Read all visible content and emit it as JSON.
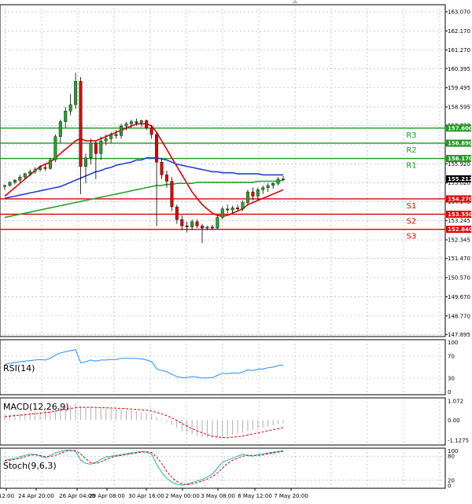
{
  "chart_data": {
    "type": "candlestick",
    "price_axis": {
      "ticks": [
        "163.070",
        "162.170",
        "161.270",
        "160.395",
        "159.495",
        "158.595",
        "157.720",
        "156.820",
        "155.920",
        "155.020",
        "154.145",
        "153.245",
        "152.345",
        "151.470",
        "150.570",
        "149.670",
        "148.770",
        "147.895"
      ],
      "range": [
        147.8,
        163.4
      ]
    },
    "time_axis": {
      "labels": [
        "12:00",
        "24 Apr 20:00",
        "26 Apr 04:00",
        "29 Apr 08:00",
        "30 Apr 16:00",
        "2 May 00:00",
        "3 May 08:00",
        "6 May 12:00",
        "7 May 20:00"
      ]
    },
    "current_price": "155.212",
    "candles": [
      {
        "o": 154.85,
        "h": 154.95,
        "l": 154.7,
        "c": 154.9
      },
      {
        "o": 154.9,
        "h": 155.1,
        "l": 154.85,
        "c": 155.05
      },
      {
        "o": 155.05,
        "h": 155.2,
        "l": 154.95,
        "c": 155.15
      },
      {
        "o": 155.15,
        "h": 155.4,
        "l": 155.05,
        "c": 155.3
      },
      {
        "o": 155.3,
        "h": 155.5,
        "l": 155.2,
        "c": 155.45
      },
      {
        "o": 155.45,
        "h": 155.65,
        "l": 155.35,
        "c": 155.55
      },
      {
        "o": 155.55,
        "h": 155.75,
        "l": 155.45,
        "c": 155.65
      },
      {
        "o": 155.65,
        "h": 155.85,
        "l": 155.55,
        "c": 155.75
      },
      {
        "o": 155.75,
        "h": 155.9,
        "l": 155.6,
        "c": 155.7
      },
      {
        "o": 155.7,
        "h": 156.2,
        "l": 155.65,
        "c": 156.1
      },
      {
        "o": 156.1,
        "h": 157.3,
        "l": 156.0,
        "c": 157.2
      },
      {
        "o": 157.2,
        "h": 158.0,
        "l": 156.9,
        "c": 157.9
      },
      {
        "o": 157.9,
        "h": 158.6,
        "l": 157.6,
        "c": 158.4
      },
      {
        "o": 158.4,
        "h": 159.2,
        "l": 158.2,
        "c": 158.7
      },
      {
        "o": 158.7,
        "h": 160.2,
        "l": 158.5,
        "c": 159.8
      },
      {
        "o": 159.8,
        "h": 160.0,
        "l": 154.5,
        "c": 155.8
      },
      {
        "o": 155.8,
        "h": 156.4,
        "l": 155.0,
        "c": 156.2
      },
      {
        "o": 156.2,
        "h": 157.1,
        "l": 155.9,
        "c": 156.9
      },
      {
        "o": 156.9,
        "h": 157.0,
        "l": 155.2,
        "c": 156.4
      },
      {
        "o": 156.4,
        "h": 157.2,
        "l": 156.1,
        "c": 157.0
      },
      {
        "o": 157.0,
        "h": 157.3,
        "l": 156.8,
        "c": 157.1
      },
      {
        "o": 157.1,
        "h": 157.4,
        "l": 156.9,
        "c": 157.3
      },
      {
        "o": 157.3,
        "h": 157.5,
        "l": 157.1,
        "c": 157.25
      },
      {
        "o": 157.25,
        "h": 157.8,
        "l": 157.1,
        "c": 157.7
      },
      {
        "o": 157.7,
        "h": 157.9,
        "l": 157.5,
        "c": 157.8
      },
      {
        "o": 157.8,
        "h": 158.0,
        "l": 157.6,
        "c": 157.9
      },
      {
        "o": 157.9,
        "h": 158.05,
        "l": 157.7,
        "c": 157.85
      },
      {
        "o": 157.85,
        "h": 158.0,
        "l": 157.65,
        "c": 157.95
      },
      {
        "o": 157.95,
        "h": 158.0,
        "l": 157.5,
        "c": 157.6
      },
      {
        "o": 157.6,
        "h": 157.75,
        "l": 157.1,
        "c": 157.3
      },
      {
        "o": 157.3,
        "h": 157.4,
        "l": 153.0,
        "c": 156.0
      },
      {
        "o": 156.0,
        "h": 156.2,
        "l": 155.2,
        "c": 155.4
      },
      {
        "o": 155.4,
        "h": 155.6,
        "l": 154.8,
        "c": 155.1
      },
      {
        "o": 155.1,
        "h": 155.3,
        "l": 153.7,
        "c": 153.9
      },
      {
        "o": 153.9,
        "h": 154.0,
        "l": 153.1,
        "c": 153.3
      },
      {
        "o": 153.3,
        "h": 153.5,
        "l": 152.8,
        "c": 153.0
      },
      {
        "o": 153.0,
        "h": 153.2,
        "l": 152.7,
        "c": 152.95
      },
      {
        "o": 152.95,
        "h": 153.3,
        "l": 152.8,
        "c": 153.2
      },
      {
        "o": 153.2,
        "h": 153.3,
        "l": 152.9,
        "c": 153.0
      },
      {
        "o": 153.0,
        "h": 153.1,
        "l": 152.2,
        "c": 152.9
      },
      {
        "o": 152.9,
        "h": 153.0,
        "l": 152.8,
        "c": 152.95
      },
      {
        "o": 152.95,
        "h": 153.05,
        "l": 152.8,
        "c": 152.9
      },
      {
        "o": 152.9,
        "h": 153.5,
        "l": 152.85,
        "c": 153.4
      },
      {
        "o": 153.4,
        "h": 153.9,
        "l": 153.3,
        "c": 153.8
      },
      {
        "o": 153.8,
        "h": 154.0,
        "l": 153.6,
        "c": 153.75
      },
      {
        "o": 153.75,
        "h": 153.95,
        "l": 153.6,
        "c": 153.85
      },
      {
        "o": 153.85,
        "h": 154.0,
        "l": 153.7,
        "c": 153.8
      },
      {
        "o": 153.8,
        "h": 154.2,
        "l": 153.7,
        "c": 154.1
      },
      {
        "o": 154.1,
        "h": 154.7,
        "l": 154.0,
        "c": 154.6
      },
      {
        "o": 154.6,
        "h": 154.8,
        "l": 154.2,
        "c": 154.4
      },
      {
        "o": 154.4,
        "h": 154.8,
        "l": 154.2,
        "c": 154.7
      },
      {
        "o": 154.7,
        "h": 154.9,
        "l": 154.5,
        "c": 154.8
      },
      {
        "o": 154.8,
        "h": 155.0,
        "l": 154.6,
        "c": 154.9
      },
      {
        "o": 154.9,
        "h": 155.05,
        "l": 154.75,
        "c": 155.0
      },
      {
        "o": 155.0,
        "h": 155.3,
        "l": 154.9,
        "c": 155.2
      },
      {
        "o": 155.2,
        "h": 155.35,
        "l": 155.1,
        "c": 155.21
      }
    ],
    "moving_averages": [
      {
        "color": "#e00000",
        "values": [
          154.4,
          154.6,
          154.8,
          155.0,
          155.2,
          155.4,
          155.6,
          155.8,
          155.9,
          156.0,
          156.2,
          156.4,
          156.6,
          156.8,
          157.0,
          157.1,
          157.0,
          157.0,
          157.0,
          157.1,
          157.2,
          157.3,
          157.4,
          157.5,
          157.6,
          157.7,
          157.8,
          157.8,
          157.8,
          157.7,
          157.4,
          157.0,
          156.6,
          156.2,
          155.8,
          155.4,
          155.0,
          154.6,
          154.3,
          154.0,
          153.8,
          153.6,
          153.5,
          153.45,
          153.5,
          153.6,
          153.7,
          153.8,
          154.0,
          154.1,
          154.2,
          154.3,
          154.4,
          154.5,
          154.6,
          154.7
        ]
      },
      {
        "color": "#2040d0",
        "values": [
          154.3,
          154.35,
          154.4,
          154.45,
          154.5,
          154.55,
          154.6,
          154.65,
          154.7,
          154.75,
          154.8,
          154.85,
          154.95,
          155.05,
          155.15,
          155.25,
          155.35,
          155.45,
          155.55,
          155.6,
          155.7,
          155.75,
          155.85,
          155.9,
          155.95,
          156.0,
          156.1,
          156.1,
          156.2,
          156.2,
          156.2,
          156.15,
          156.1,
          156.0,
          155.9,
          155.85,
          155.8,
          155.75,
          155.7,
          155.65,
          155.6,
          155.55,
          155.55,
          155.5,
          155.5,
          155.5,
          155.45,
          155.45,
          155.45,
          155.45,
          155.45,
          155.4,
          155.4,
          155.4,
          155.4,
          155.4
        ]
      },
      {
        "color": "#2aa02a",
        "values": [
          153.4,
          153.45,
          153.5,
          153.55,
          153.6,
          153.65,
          153.7,
          153.75,
          153.8,
          153.85,
          153.9,
          153.95,
          154.0,
          154.05,
          154.1,
          154.15,
          154.2,
          154.25,
          154.3,
          154.35,
          154.4,
          154.45,
          154.5,
          154.55,
          154.6,
          154.65,
          154.7,
          154.75,
          154.8,
          154.85,
          154.9,
          154.9,
          154.95,
          154.95,
          155.0,
          155.0,
          155.0,
          155.0,
          155.05,
          155.05,
          155.05,
          155.05,
          155.05,
          155.05,
          155.05,
          155.05,
          155.05,
          155.05,
          155.05,
          155.05,
          155.1,
          155.1,
          155.1,
          155.1,
          155.1,
          155.15
        ]
      }
    ],
    "levels": [
      {
        "label": "R3",
        "value": 157.6,
        "price_tag": "157.600",
        "kind": "resistance"
      },
      {
        "label": "R2",
        "value": 156.89,
        "price_tag": "156.890",
        "kind": "resistance"
      },
      {
        "label": "R1",
        "value": 156.17,
        "price_tag": "156.170",
        "kind": "resistance"
      },
      {
        "label": "S1",
        "value": 154.27,
        "price_tag": "154.270",
        "kind": "support"
      },
      {
        "label": "S2",
        "value": 153.55,
        "price_tag": "153.550",
        "kind": "support"
      },
      {
        "label": "S3",
        "value": 152.84,
        "price_tag": "152.840",
        "kind": "support"
      }
    ],
    "colors": {
      "resistance": "#1c9a1c",
      "support": "#e00000",
      "bull": "#2aa02a",
      "bear": "#e00000",
      "grid": "#9aa8b8",
      "current_tag": "#000000"
    },
    "rsi": {
      "label": "RSI(14)",
      "ticks": [
        "100",
        "70",
        "30",
        "0"
      ],
      "range": [
        0,
        100
      ],
      "values": [
        55,
        57,
        58,
        60,
        61,
        62,
        63,
        64,
        63,
        66,
        72,
        76,
        78,
        80,
        82,
        58,
        60,
        63,
        61,
        63,
        63,
        64,
        64,
        66,
        66,
        66,
        66,
        65,
        63,
        60,
        47,
        44,
        42,
        37,
        33,
        31,
        31,
        33,
        32,
        30,
        31,
        31,
        35,
        39,
        38,
        40,
        39,
        41,
        45,
        44,
        46,
        47,
        49,
        50,
        53,
        54
      ]
    },
    "macd": {
      "label": "MACD(12,26,9)",
      "ticks": [
        "1.072",
        "0.00",
        "-1.1275"
      ],
      "range": [
        -1.4,
        1.25
      ],
      "histogram": [
        0.3,
        0.32,
        0.35,
        0.38,
        0.4,
        0.42,
        0.45,
        0.48,
        0.5,
        0.55,
        0.62,
        0.7,
        0.78,
        0.85,
        0.92,
        0.78,
        0.74,
        0.72,
        0.68,
        0.66,
        0.64,
        0.62,
        0.6,
        0.58,
        0.56,
        0.54,
        0.5,
        0.46,
        0.4,
        0.32,
        0.18,
        0.05,
        -0.1,
        -0.28,
        -0.45,
        -0.6,
        -0.72,
        -0.8,
        -0.88,
        -0.95,
        -1.0,
        -1.02,
        -1.0,
        -0.95,
        -0.88,
        -0.82,
        -0.76,
        -0.7,
        -0.62,
        -0.55,
        -0.48,
        -0.42,
        -0.36,
        -0.3,
        -0.24,
        -0.18
      ],
      "signal": [
        0.2,
        0.22,
        0.25,
        0.28,
        0.3,
        0.33,
        0.36,
        0.39,
        0.42,
        0.45,
        0.5,
        0.55,
        0.6,
        0.65,
        0.7,
        0.72,
        0.72,
        0.72,
        0.71,
        0.7,
        0.69,
        0.68,
        0.67,
        0.66,
        0.64,
        0.62,
        0.6,
        0.58,
        0.55,
        0.5,
        0.43,
        0.35,
        0.25,
        0.12,
        -0.02,
        -0.18,
        -0.34,
        -0.48,
        -0.6,
        -0.72,
        -0.82,
        -0.9,
        -0.95,
        -0.98,
        -0.98,
        -0.96,
        -0.93,
        -0.89,
        -0.84,
        -0.78,
        -0.72,
        -0.66,
        -0.6,
        -0.54,
        -0.48,
        -0.42
      ]
    },
    "stoch": {
      "label": "Stoch(9,6,3)",
      "ticks": [
        "100",
        "80",
        "20",
        "0"
      ],
      "range": [
        0,
        100
      ],
      "k": [
        70,
        72,
        75,
        78,
        82,
        85,
        84,
        80,
        76,
        82,
        88,
        92,
        95,
        95,
        92,
        70,
        62,
        60,
        65,
        72,
        78,
        80,
        82,
        84,
        86,
        88,
        90,
        92,
        90,
        85,
        60,
        40,
        25,
        15,
        10,
        8,
        10,
        14,
        18,
        22,
        28,
        35,
        50,
        65,
        70,
        75,
        80,
        85,
        82,
        80,
        84,
        86,
        88,
        90,
        92,
        94
      ],
      "d": [
        68,
        70,
        72,
        75,
        78,
        82,
        84,
        82,
        79,
        79,
        82,
        87,
        92,
        94,
        94,
        85,
        74,
        64,
        62,
        66,
        72,
        77,
        80,
        82,
        84,
        86,
        88,
        90,
        91,
        89,
        78,
        62,
        42,
        27,
        17,
        11,
        9,
        11,
        14,
        18,
        23,
        29,
        38,
        50,
        62,
        70,
        75,
        80,
        82,
        82,
        82,
        83,
        86,
        88,
        90,
        92
      ]
    }
  }
}
